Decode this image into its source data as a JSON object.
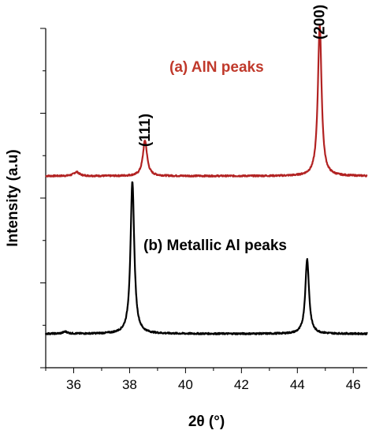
{
  "chart_data": {
    "type": "line",
    "xlabel": "2θ (°)",
    "ylabel": "Intensity (a.u)",
    "xlim": [
      35,
      46.5
    ],
    "ylim": [
      0,
      100
    ],
    "xticks": [
      "36",
      "38",
      "40",
      "42",
      "44",
      "46"
    ],
    "grid": false,
    "series": [
      {
        "name": "(a) AlN peaks",
        "color": "#b22222",
        "label_color": "#c0392b",
        "baseline": 56.5,
        "peaks": [
          {
            "x": 36.1,
            "height": 1.2,
            "width": 0.12
          },
          {
            "x": 38.55,
            "height": 10.5,
            "width": 0.09
          },
          {
            "x": 44.8,
            "height": 44.5,
            "width": 0.08
          }
        ]
      },
      {
        "name": "(b) Metallic Al peaks",
        "color": "#000000",
        "label_color": "#000000",
        "baseline": 10,
        "peaks": [
          {
            "x": 35.7,
            "height": 0.6,
            "width": 0.1
          },
          {
            "x": 38.1,
            "height": 45,
            "width": 0.08
          },
          {
            "x": 44.35,
            "height": 22,
            "width": 0.08
          }
        ]
      }
    ],
    "annotations": [
      {
        "text": "(111)",
        "x": 38.55
      },
      {
        "text": "(200)",
        "x": 44.8
      }
    ]
  }
}
